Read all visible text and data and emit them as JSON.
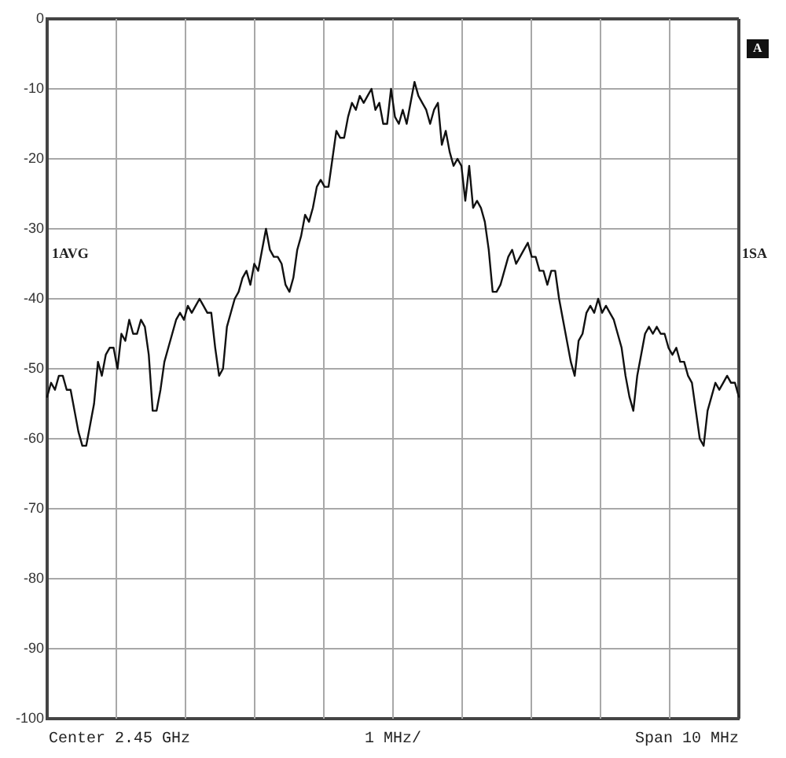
{
  "chart_data": {
    "type": "line",
    "annotations": [
      "Center 2.45 GHz",
      "1 MHz/",
      "Span 10 MHz",
      "1AVG",
      "1SA",
      "A"
    ],
    "categories": [
      null,
      null,
      null,
      null,
      null,
      null,
      null,
      null,
      null,
      null,
      null,
      null,
      null,
      null,
      null,
      null,
      null,
      null,
      null,
      null,
      null,
      null,
      null,
      null,
      null,
      null,
      null,
      null,
      null,
      null,
      null,
      null,
      null,
      null,
      null,
      null,
      null,
      null,
      null,
      null,
      null,
      null,
      null,
      null,
      null,
      null,
      null,
      null,
      null,
      null,
      null,
      null,
      null,
      null,
      null,
      null,
      null,
      null,
      null,
      null,
      null,
      null,
      null,
      null,
      null,
      null,
      null,
      null,
      null,
      null,
      null,
      null,
      null,
      null,
      null,
      null,
      null,
      null,
      null,
      null,
      null,
      null,
      null,
      null,
      null,
      null,
      null,
      null,
      null,
      null,
      null,
      null,
      null,
      null,
      null,
      null,
      null,
      null,
      null,
      null,
      null,
      null,
      null,
      null,
      null,
      null,
      null,
      null,
      null,
      null,
      null,
      null,
      null,
      null,
      null,
      null,
      null,
      null,
      null,
      null,
      null,
      null,
      null,
      null,
      null,
      null,
      null,
      null,
      null,
      null,
      null,
      null,
      null,
      null,
      null,
      null,
      null,
      null,
      null,
      null,
      null,
      null,
      null,
      null,
      null,
      null,
      null,
      null,
      null,
      null,
      null,
      null,
      null,
      null,
      null,
      null,
      null,
      null,
      null,
      null,
      null,
      null,
      null,
      null,
      null,
      null,
      null,
      null,
      null,
      null,
      null,
      null,
      null,
      null,
      null,
      null,
      null,
      null
    ],
    "series": [
      {
        "color": "#111111",
        "values": [
          -54,
          -52,
          -53,
          -51,
          -51,
          -53,
          -53,
          -56,
          -59,
          -61,
          -61,
          -58,
          -55,
          -49,
          -51,
          -48,
          -47,
          -47,
          -50,
          -45,
          -46,
          -43,
          -45,
          -45,
          -43,
          -44,
          -48,
          -56,
          -56,
          -53,
          -49,
          -47,
          -45,
          -43,
          -42,
          -43,
          -41,
          -42,
          -41,
          -40,
          -41,
          -42,
          -42,
          -47,
          -51,
          -50,
          -44,
          -42,
          -40,
          -39,
          -37,
          -36,
          -38,
          -35,
          -36,
          -33,
          -30,
          -33,
          -34,
          -34,
          -35,
          -38,
          -39,
          -37,
          -33,
          -31,
          -28,
          -29,
          -27,
          -24,
          -23,
          -24,
          -24,
          -20,
          -16,
          -17,
          -17,
          -14,
          -12,
          -13,
          -11,
          -12,
          -11,
          -10,
          -13,
          -12,
          -15,
          -15,
          -10,
          -14,
          -15,
          -13,
          -15,
          -12,
          -9,
          -11,
          -12,
          -13,
          -15,
          -13,
          -12,
          -18,
          -16,
          -19,
          -21,
          -20,
          -21,
          -26,
          -21,
          -27,
          -26,
          -27,
          -29,
          -33,
          -39,
          -39,
          -38,
          -36,
          -34,
          -33,
          -35,
          -34,
          -33,
          -32,
          -34,
          -34,
          -36,
          -36,
          -38,
          -36,
          -36,
          -40,
          -43,
          -46,
          -49,
          -51,
          -46,
          -45,
          -42,
          -41,
          -42,
          -40,
          -42,
          -41,
          -42,
          -43,
          -45,
          -47,
          -51,
          -54,
          -56,
          -51,
          -48,
          -45,
          -44,
          -45,
          -44,
          -45,
          -45,
          -47,
          -48,
          -47,
          -49,
          -49,
          -51,
          -52,
          -56,
          -60,
          -61,
          -56,
          -54,
          -52,
          -53,
          -52,
          -51,
          -52,
          -52,
          -54
        ]
      }
    ],
    "ylim": [
      -100,
      0
    ],
    "yticks": [
      -100,
      -90,
      -80,
      -70,
      -60,
      -50,
      -40,
      -30,
      -20,
      -10,
      0
    ],
    "grid": true,
    "tick_labels": "y",
    "marker": "none",
    "line_style": "solid"
  }
}
